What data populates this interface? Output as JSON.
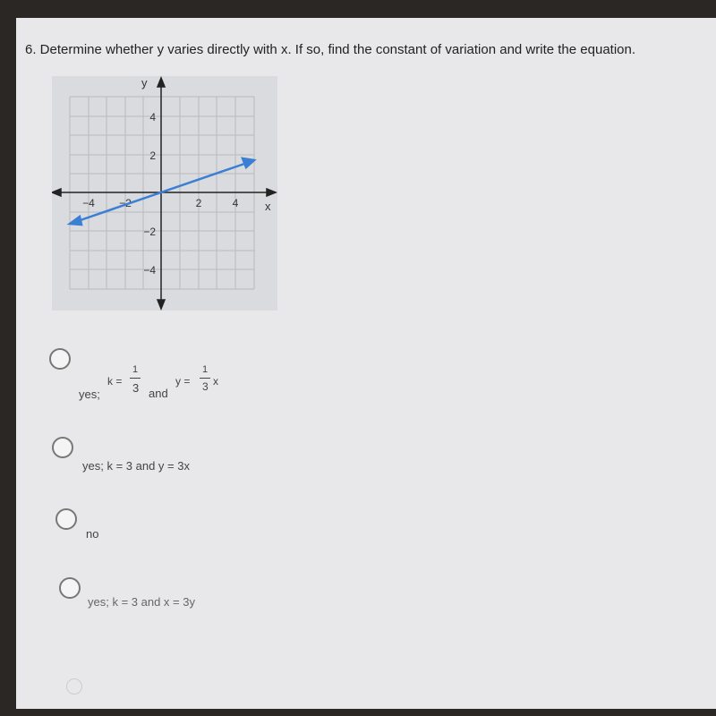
{
  "question": {
    "text": "6. Determine whether y varies directly with x. If so, find the constant of variation and write the equation."
  },
  "graph": {
    "x_label": "x",
    "y_label": "y",
    "x_tick_labels": [
      "−4",
      "−2",
      "2",
      "4"
    ],
    "y_tick_labels": [
      "4",
      "2",
      "−2",
      "−4"
    ]
  },
  "options": [
    {
      "prefix": "yes;",
      "k_label": "k =",
      "k_num": "1",
      "k_den": "3",
      "joiner": "and",
      "eq_label": "y =",
      "eq_num": "1",
      "eq_den": "3",
      "eq_var": "x"
    },
    {
      "text": "yes; k = 3 and y = 3x"
    },
    {
      "text": "no"
    },
    {
      "text": "yes; k = 3 and x = 3y"
    }
  ]
}
